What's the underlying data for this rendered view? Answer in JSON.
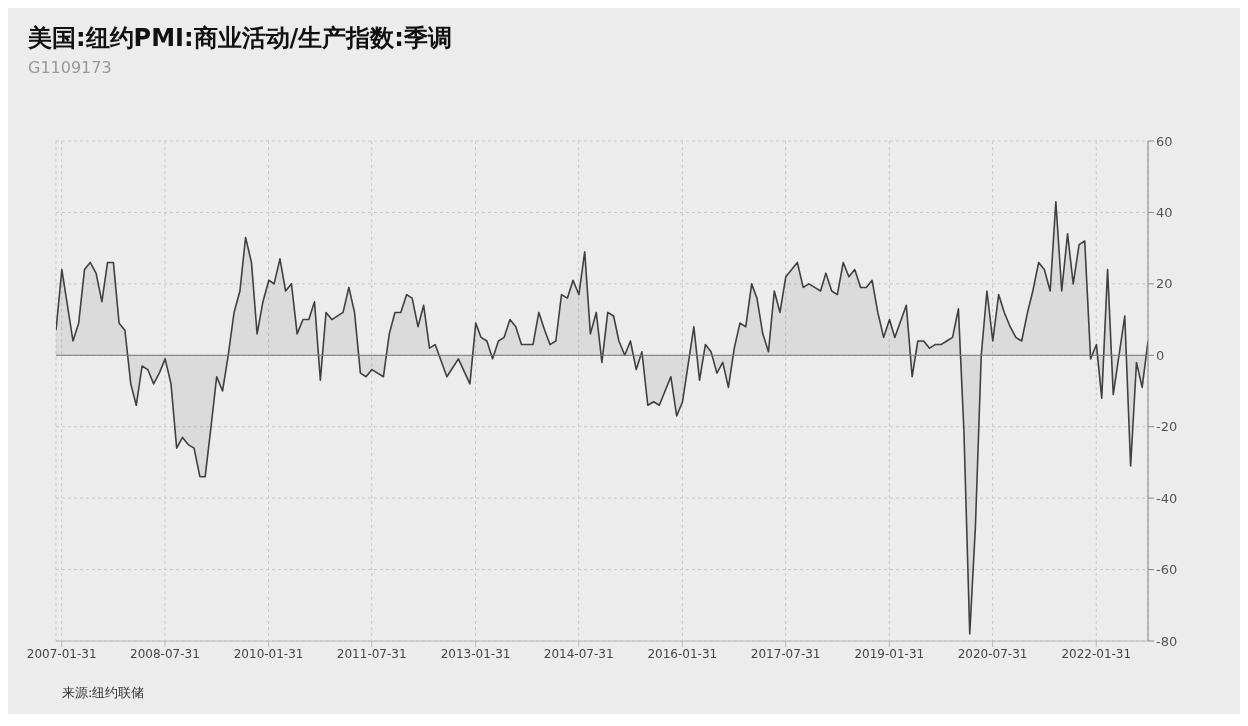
{
  "chart_data": {
    "type": "area",
    "title": "美国:纽约PMI:商业活动/生产指数:季调",
    "subtitle": "G1109173",
    "annotations": [
      "来源:纽约联储"
    ],
    "x": [
      "2007-01",
      "2007-02",
      "2007-04",
      "2007-05",
      "2007-06",
      "2007-07",
      "2007-08",
      "2007-09",
      "2007-10",
      "2007-11",
      "2007-12",
      "2008-01",
      "2008-02",
      "2008-03",
      "2008-04",
      "2008-05",
      "2008-06",
      "2008-07",
      "2008-08",
      "2008-09",
      "2008-10",
      "2008-11",
      "2008-12",
      "2009-01",
      "2009-02",
      "2009-03",
      "2009-04",
      "2009-05",
      "2009-06",
      "2009-07",
      "2009-08",
      "2009-09",
      "2009-10",
      "2009-11",
      "2009-12",
      "2010-01",
      "2010-02",
      "2010-03",
      "2010-04",
      "2010-05",
      "2010-06",
      "2010-07",
      "2010-08",
      "2010-09",
      "2010-10",
      "2010-11",
      "2010-12",
      "2011-01",
      "2011-03",
      "2011-04",
      "2011-05",
      "2011-06",
      "2011-07",
      "2011-08",
      "2011-10",
      "2011-11",
      "2011-12",
      "2012-01",
      "2012-02",
      "2012-03",
      "2012-04",
      "2012-05",
      "2012-06",
      "2012-07",
      "2012-09",
      "2012-11",
      "2013-01",
      "2013-02",
      "2013-03",
      "2013-04",
      "2013-05",
      "2013-06",
      "2013-07",
      "2013-08",
      "2013-09",
      "2013-10",
      "2013-12",
      "2014-01",
      "2014-02",
      "2014-03",
      "2014-04",
      "2014-05",
      "2014-06",
      "2014-07",
      "2014-08",
      "2014-09",
      "2014-10",
      "2014-11",
      "2014-12",
      "2015-01",
      "2015-02",
      "2015-03",
      "2015-04",
      "2015-05",
      "2015-06",
      "2015-07",
      "2015-08",
      "2015-09",
      "2015-10",
      "2015-12",
      "2016-01",
      "2016-02",
      "2016-04",
      "2016-05",
      "2016-06",
      "2016-07",
      "2016-08",
      "2016-09",
      "2016-10",
      "2016-11",
      "2016-12",
      "2017-01",
      "2017-02",
      "2017-03",
      "2017-04",
      "2017-05",
      "2017-06",
      "2017-07",
      "2017-08",
      "2017-09",
      "2017-10",
      "2017-11",
      "2017-12",
      "2018-01",
      "2018-02",
      "2018-03",
      "2018-04",
      "2018-05",
      "2018-06",
      "2018-07",
      "2018-08",
      "2018-09",
      "2018-10",
      "2018-11",
      "2018-12",
      "2019-01",
      "2019-02",
      "2019-03",
      "2019-05",
      "2019-06",
      "2019-07",
      "2019-08",
      "2019-09",
      "2019-10",
      "2019-11",
      "2019-12",
      "2020-01",
      "2020-02",
      "2020-03",
      "2020-04",
      "2020-05",
      "2020-06",
      "2020-07",
      "2020-08",
      "2020-09",
      "2020-10",
      "2020-11",
      "2020-12",
      "2021-01",
      "2021-02",
      "2021-03",
      "2021-04",
      "2021-05",
      "2021-06",
      "2021-07",
      "2021-08",
      "2021-09",
      "2021-10",
      "2021-11",
      "2021-12",
      "2022-01",
      "2022-02",
      "2022-03",
      "2022-04",
      "2022-05",
      "2022-07",
      "2022-08",
      "2022-09",
      "2022-10",
      "2022-11"
    ],
    "series": [
      {
        "color": "#404040",
        "values": [
          7,
          24,
          4,
          9,
          24,
          26,
          23,
          15,
          26,
          26,
          9,
          7,
          -8,
          -14,
          -3,
          -4,
          -8,
          -5,
          -1,
          -8,
          -26,
          -23,
          -25,
          -26,
          -34,
          -34,
          -20,
          -6,
          -10,
          0,
          12,
          18,
          33,
          26,
          6,
          15,
          21,
          20,
          27,
          18,
          20,
          6,
          10,
          10,
          15,
          -7,
          12,
          10,
          12,
          19,
          12,
          -5,
          -6,
          -4,
          -6,
          6,
          12,
          12,
          17,
          16,
          8,
          14,
          2,
          3,
          -6,
          -1,
          -8,
          9,
          5,
          4,
          -1,
          4,
          5,
          10,
          8,
          3,
          3,
          12,
          7,
          3,
          4,
          17,
          16,
          21,
          17,
          29,
          6,
          12,
          -2,
          12,
          11,
          4,
          0,
          4,
          -4,
          1,
          -14,
          -13,
          -14,
          -6,
          -17,
          -13,
          8,
          -7,
          3,
          1,
          -5,
          -2,
          -9,
          2,
          9,
          8,
          20,
          16,
          6,
          1,
          18,
          12,
          22,
          24,
          26,
          19,
          20,
          19,
          18,
          23,
          18,
          17,
          26,
          22,
          24,
          19,
          19,
          21,
          12,
          5,
          10,
          5,
          14,
          -6,
          4,
          4,
          2,
          3,
          3,
          4,
          5,
          13,
          -21,
          -78,
          -48,
          0,
          18,
          4,
          17,
          12,
          8,
          5,
          4,
          12,
          18,
          26,
          24,
          18,
          43,
          18,
          34,
          20,
          31,
          32,
          -1,
          3,
          -12,
          24,
          -11,
          11,
          -31,
          -2,
          -9,
          4
        ]
      }
    ],
    "xlim": [
      "2007-01",
      "2022-11"
    ],
    "xticks": [
      "2007-01-31",
      "2008-07-31",
      "2010-01-31",
      "2011-07-31",
      "2013-01-31",
      "2014-07-31",
      "2016-01-31",
      "2017-07-31",
      "2019-01-31",
      "2020-07-31",
      "2022-01-31"
    ],
    "ylim": [
      -80,
      60
    ],
    "yticks": [
      -80,
      -60,
      -40,
      -20,
      0,
      20,
      40,
      60
    ],
    "grid": true
  }
}
